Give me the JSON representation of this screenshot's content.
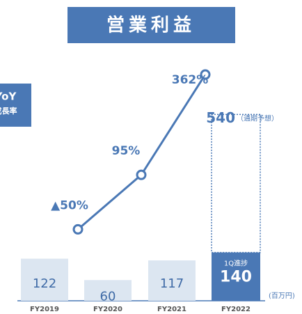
{
  "chart_data": {
    "type": "bar",
    "title": "営業利益",
    "categories": [
      "FY2019",
      "FY2020",
      "FY2021",
      "FY2022"
    ],
    "values": [
      122,
      60,
      117,
      140
    ],
    "colors": [
      "#dce6f1",
      "#dce6f1",
      "#dce6f1",
      "#4a78b5"
    ],
    "ylim": [
      0,
      670
    ],
    "forecast": {
      "value": 540,
      "label": "（通期予想）"
    },
    "progress_label": "1Q進捗",
    "unit": "(百万円)",
    "growth": {
      "title": [
        "YoY",
        "成長率"
      ],
      "axis": "y2",
      "color": "#4a78b5",
      "values": [
        -50,
        95,
        362,
        null
      ],
      "value_labels": [
        "▲50%",
        "95%",
        "362%",
        null
      ]
    },
    "y2lim": [
      -240,
      375
    ]
  }
}
